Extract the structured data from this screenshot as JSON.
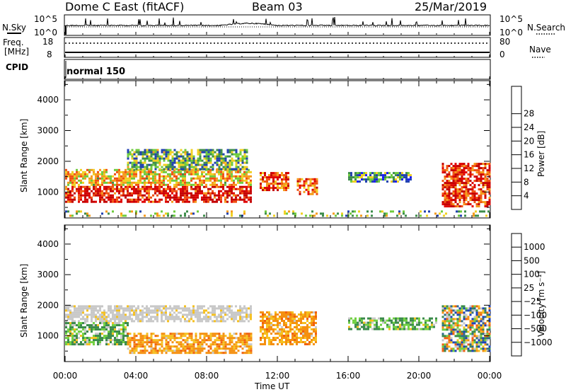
{
  "header": {
    "title": "Dome C East (fitACF)",
    "beam": "Beam 03",
    "date": "25/Mar/2019"
  },
  "status_panels": {
    "nsky": {
      "label": "N.Sky",
      "top_label": "10^5",
      "bottom_label": "10^0",
      "right_top": "10^5",
      "right_bottom": "10^0",
      "right_label": "N.Search"
    },
    "freq": {
      "label_line1": "Freq.",
      "label_line2": "[MHz]",
      "top_value": "18",
      "bottom_value": "8",
      "right_top": "80",
      "right_bottom": "0",
      "right_label": "Nave"
    },
    "cpid": {
      "label": "CPID",
      "mode": "normal 150"
    }
  },
  "chart_data": [
    {
      "type": "heatmap",
      "name": "power",
      "xlabel": "Time UT",
      "ylabel": "Slant Range [km]",
      "xticks": [
        "00:00",
        "04:00",
        "08:00",
        "12:00",
        "16:00",
        "20:00",
        "00:00"
      ],
      "xlim_hours": [
        0,
        24
      ],
      "yticks": [
        1000,
        2000,
        3000,
        4000
      ],
      "ylim_km": [
        180,
        4600
      ],
      "colorbar": {
        "label": "Power [dB]",
        "ticks": [
          4,
          8,
          12,
          16,
          20,
          24,
          28
        ],
        "colors": [
          "#1a1aff",
          "#2040b0",
          "#3d8d4a",
          "#6ecb3c",
          "#f0d020",
          "#f59a1a",
          "#f05010",
          "#e00000",
          "#c40000"
        ]
      },
      "regions": [
        {
          "t0": 0.0,
          "t1": 10.5,
          "r0": 650,
          "r1": 1200,
          "level": 0.85
        },
        {
          "t0": 0.0,
          "t1": 10.5,
          "r0": 1200,
          "r1": 1750,
          "level": 0.55
        },
        {
          "t0": 3.5,
          "t1": 10.3,
          "r0": 1750,
          "r1": 2400,
          "level": 0.35
        },
        {
          "t0": 11.0,
          "t1": 12.6,
          "r0": 1050,
          "r1": 1650,
          "level": 0.75
        },
        {
          "t0": 13.1,
          "t1": 14.2,
          "r0": 950,
          "r1": 1450,
          "level": 0.7
        },
        {
          "t0": 16.0,
          "t1": 19.5,
          "r0": 1350,
          "r1": 1650,
          "level": 0.3
        },
        {
          "t0": 21.3,
          "t1": 24.0,
          "r0": 500,
          "r1": 1950,
          "level": 0.8
        },
        {
          "t0": 0.0,
          "t1": 24.0,
          "r0": 200,
          "r1": 400,
          "level": 0.4
        }
      ]
    },
    {
      "type": "heatmap",
      "name": "velocity",
      "xlabel": "Time UT",
      "ylabel": "Slant Range [km]",
      "xticks": [
        "00:00",
        "04:00",
        "08:00",
        "12:00",
        "16:00",
        "20:00",
        "00:00"
      ],
      "xlim_hours": [
        0,
        24
      ],
      "yticks": [
        1000,
        2000,
        3000,
        4000
      ],
      "ylim_km": [
        180,
        4600
      ],
      "colorbar": {
        "label": "Velocity [m s⁻¹]",
        "ticks": [
          "1000",
          "500",
          "100",
          "25",
          "−25",
          "−100",
          "−500",
          "−1000"
        ],
        "colors": [
          "#1a40c0",
          "#2d6a8a",
          "#3a8a4a",
          "#70d040",
          "#c8c8c8",
          "#f5c020",
          "#f59010",
          "#f06010",
          "#e00000"
        ]
      },
      "regions": [
        {
          "t0": 0.0,
          "t1": 10.5,
          "r0": 1450,
          "r1": 2000,
          "level": "grey"
        },
        {
          "t0": 0.0,
          "t1": 3.5,
          "r0": 700,
          "r1": 1450,
          "level": "green"
        },
        {
          "t0": 3.5,
          "t1": 10.5,
          "r0": 450,
          "r1": 1100,
          "level": "orange"
        },
        {
          "t0": 11.0,
          "t1": 14.2,
          "r0": 700,
          "r1": 1800,
          "level": "orange"
        },
        {
          "t0": 16.0,
          "t1": 21.0,
          "r0": 1200,
          "r1": 1600,
          "level": "green"
        },
        {
          "t0": 21.3,
          "t1": 24.0,
          "r0": 500,
          "r1": 2000,
          "level": "mixed"
        }
      ]
    }
  ]
}
